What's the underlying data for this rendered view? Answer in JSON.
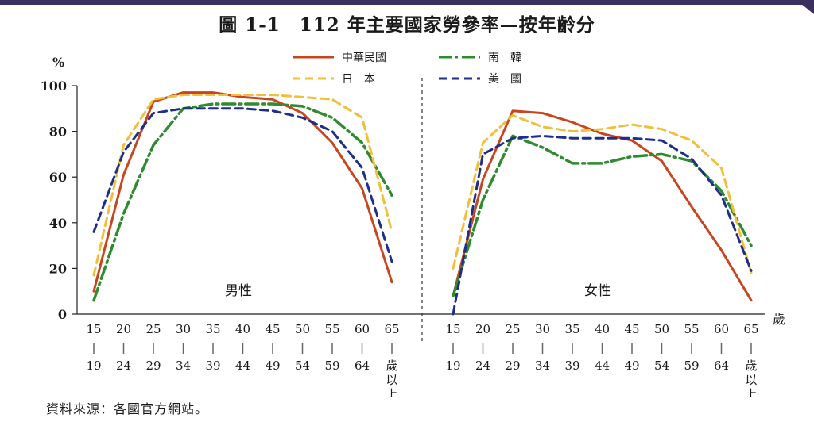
{
  "title": "圖 1-1　112 年主要國家勞參率—按年齡分",
  "source": "資料來源：各國官方網站。",
  "chart_data": {
    "type": "line",
    "ylabel": "%",
    "ylim": [
      0,
      100
    ],
    "yticks": [
      0,
      20,
      40,
      60,
      80,
      100
    ],
    "xunit": "歲",
    "categories": [
      {
        "top": "15",
        "bottom": [
          "19"
        ]
      },
      {
        "top": "20",
        "bottom": [
          "24"
        ]
      },
      {
        "top": "25",
        "bottom": [
          "29"
        ]
      },
      {
        "top": "30",
        "bottom": [
          "34"
        ]
      },
      {
        "top": "35",
        "bottom": [
          "39"
        ]
      },
      {
        "top": "40",
        "bottom": [
          "44"
        ]
      },
      {
        "top": "45",
        "bottom": [
          "49"
        ]
      },
      {
        "top": "50",
        "bottom": [
          "54"
        ]
      },
      {
        "top": "55",
        "bottom": [
          "59"
        ]
      },
      {
        "top": "60",
        "bottom": [
          "64"
        ]
      },
      {
        "top": "65",
        "bottom": [
          "歲",
          "以",
          "上"
        ]
      }
    ],
    "legend": [
      {
        "name": "中華民國",
        "color": "#c8461e",
        "dash": "solid"
      },
      {
        "name": "南　韓",
        "color": "#2e8b2e",
        "dash": "dashdot"
      },
      {
        "name": "日　本",
        "color": "#f2bf3a",
        "dash": "dash"
      },
      {
        "name": "美　國",
        "color": "#1f2e8c",
        "dash": "dash"
      }
    ],
    "panels": [
      {
        "label": "男性",
        "series": [
          {
            "name": "中華民國",
            "values": [
              10,
              61,
              93,
              97,
              97,
              95,
              94,
              88,
              75,
              55,
              14
            ]
          },
          {
            "name": "南　韓",
            "values": [
              6,
              44,
              74,
              90,
              92,
              92,
              92,
              91,
              86,
              75,
              52
            ]
          },
          {
            "name": "日　本",
            "values": [
              17,
              74,
              94,
              96,
              96,
              96,
              96,
              95,
              94,
              86,
              36
            ]
          },
          {
            "name": "美　國",
            "values": [
              36,
              71,
              88,
              90,
              90,
              90,
              89,
              86,
              80,
              64,
              23
            ]
          }
        ]
      },
      {
        "label": "女性",
        "series": [
          {
            "name": "中華民國",
            "values": [
              8,
              59,
              89,
              88,
              84,
              79,
              76,
              67,
              47,
              28,
              6
            ]
          },
          {
            "name": "南　韓",
            "values": [
              8,
              50,
              78,
              73,
              66,
              66,
              69,
              70,
              67,
              54,
              30
            ]
          },
          {
            "name": "日　本",
            "values": [
              20,
              75,
              87,
              82,
              80,
              81,
              83,
              81,
              76,
              64,
              18
            ]
          },
          {
            "name": "美　國",
            "values": [
              0,
              70,
              77,
              78,
              77,
              77,
              77,
              76,
              68,
              52,
              19
            ]
          }
        ]
      }
    ]
  }
}
